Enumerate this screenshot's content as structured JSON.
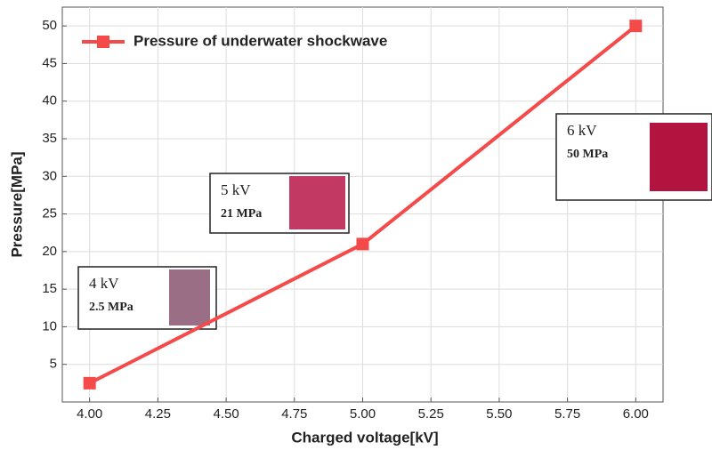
{
  "chart_data": {
    "type": "line",
    "x_label": "Charged voltage[kV]",
    "y_label": "Pressure[MPa]",
    "x": [
      4,
      5,
      6
    ],
    "series": [
      {
        "name": "Pressure of underwater shockwave",
        "color": "#f44a4a",
        "values": [
          2.5,
          21,
          50
        ]
      }
    ],
    "xlim": [
      3.9,
      6.1
    ],
    "xticks": [
      {
        "value": 4,
        "label": "4.00"
      },
      {
        "value": 4.25,
        "label": "4.25"
      },
      {
        "value": 4.5,
        "label": "4.50"
      },
      {
        "value": 4.75,
        "label": "4.75"
      },
      {
        "value": 5,
        "label": "5.00"
      },
      {
        "value": 5.25,
        "label": "5.25"
      },
      {
        "value": 5.5,
        "label": "5.50"
      },
      {
        "value": 5.75,
        "label": "5.75"
      },
      {
        "value": 6,
        "label": "6.00"
      }
    ],
    "ylim": [
      0,
      52.5
    ],
    "yticks": [
      5,
      10,
      15,
      20,
      25,
      30,
      35,
      40,
      45,
      50
    ],
    "grid": true,
    "legend": "upper left",
    "annotations": [
      {
        "lines": [
          "4 kV",
          "2.5 MPa"
        ],
        "swatch": "#9a6f86"
      },
      {
        "lines": [
          "5 kV",
          "21 MPa"
        ],
        "swatch": "#c23a64"
      },
      {
        "lines": [
          "6 kV",
          "50 MPa"
        ],
        "swatch": "#b3143f"
      }
    ]
  }
}
